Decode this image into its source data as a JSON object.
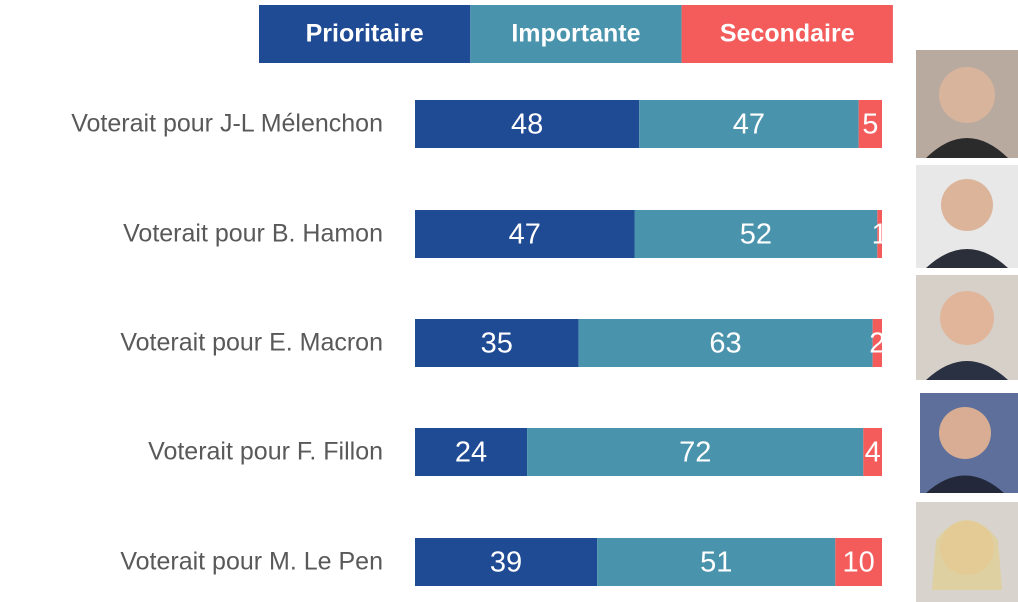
{
  "chart_data": {
    "type": "stacked-bar-horizontal",
    "categories": [
      "Voterait pour J-L Mélenchon",
      "Voterait pour B. Hamon",
      "Voterait pour E. Macron",
      "Voterait pour F. Fillon",
      "Voterait pour M. Le Pen"
    ],
    "series": [
      {
        "name": "Prioritaire",
        "color": "#1f4a94",
        "values": [
          48,
          47,
          35,
          24,
          39
        ]
      },
      {
        "name": "Importante",
        "color": "#4a93ad",
        "values": [
          47,
          52,
          63,
          72,
          51
        ]
      },
      {
        "name": "Secondaire",
        "color": "#f45b5b",
        "values": [
          5,
          1,
          2,
          4,
          10
        ]
      }
    ]
  }
}
